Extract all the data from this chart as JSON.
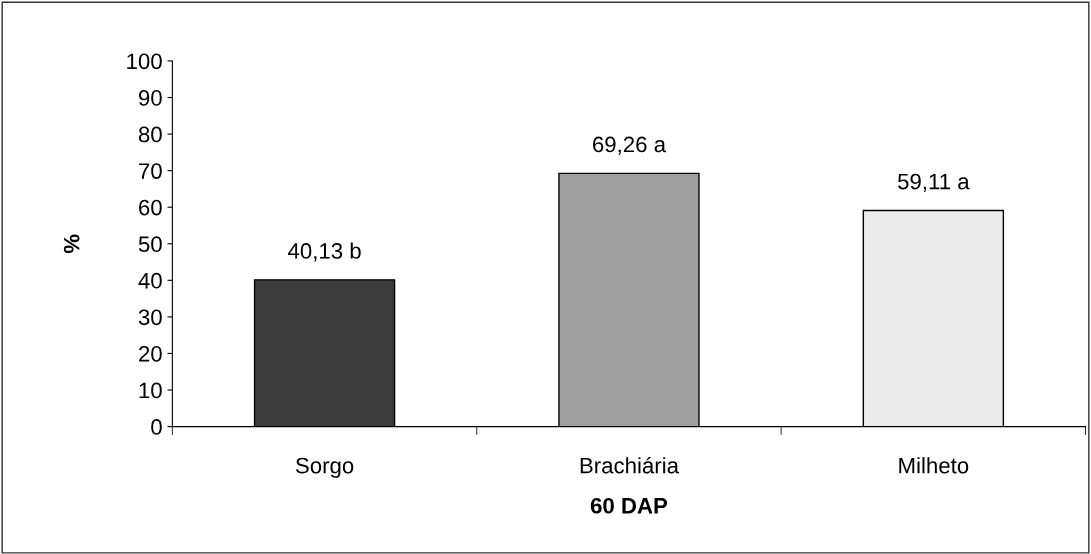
{
  "chart_data": {
    "type": "bar",
    "xlabel": "60 DAP",
    "ylabel": "%",
    "categories": [
      "Sorgo",
      "Brachiária",
      "Milheto"
    ],
    "values": [
      40.13,
      69.26,
      59.11
    ],
    "colors": [
      "#3c3c3c",
      "#a0a0a0",
      "#ebebeb"
    ],
    "value_labels": [
      "40,13 b",
      "69,26 a",
      "59,11 a"
    ],
    "ylim": [
      0,
      100
    ],
    "yticks": [
      0,
      10,
      20,
      30,
      40,
      50,
      60,
      70,
      80,
      90,
      100
    ],
    "grid": false
  }
}
